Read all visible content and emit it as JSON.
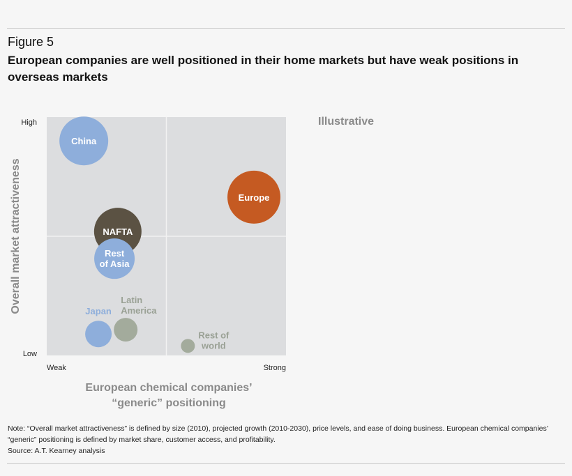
{
  "figure_label": "Figure 5",
  "title": "European companies are well positioned in their home markets but have weak positions in overseas markets",
  "annotation": "Illustrative",
  "note": "Note: “Overall market attractiveness” is defined by size (2010), projected growth (2010-2030), price levels, and ease of doing business. European chemical companies’ “generic” positioning is defined by market share, customer access, and profitability.",
  "source": "Source: A.T. Kearney analysis",
  "chart_data": {
    "type": "scatter",
    "subtype": "bubble",
    "xlabel": "European chemical companies’ “generic” positioning",
    "ylabel": "Overall market attractiveness",
    "x_ticks": [
      "Weak",
      "Strong"
    ],
    "y_ticks": [
      "Low",
      "High"
    ],
    "xlim": [
      0,
      100
    ],
    "ylim": [
      0,
      100
    ],
    "quadrant_lines": true,
    "colors": {
      "plot_bg": "#dcdddf",
      "blue": "#8eaedb",
      "orange": "#c55a22",
      "brown": "#5b5243",
      "green": "#a3ab9c",
      "label_gray": "#9aa195",
      "axis_label": "#8a8a8a"
    },
    "points": [
      {
        "name": "China",
        "x": 15.5,
        "y": 90,
        "size": 35,
        "color": "#8eaedb",
        "label_color": "#ffffff",
        "label_pos": "inside"
      },
      {
        "name": "Europe",
        "x": 86.6,
        "y": 66.4,
        "size": 38,
        "color": "#c55a22",
        "label_color": "#ffffff",
        "label_pos": "inside"
      },
      {
        "name": "NAFTA",
        "x": 29.7,
        "y": 52,
        "size": 34,
        "color": "#5b5243",
        "label_color": "#ffffff",
        "label_pos": "inside"
      },
      {
        "name": "Rest of Asia",
        "x": 28.3,
        "y": 40.6,
        "size": 29,
        "color": "#8eaedb",
        "label_color": "#ffffff",
        "label_pos": "inside"
      },
      {
        "name": "Japan",
        "x": 21.6,
        "y": 9,
        "size": 19,
        "color": "#8eaedb",
        "label_color": "#8eaedb",
        "label_pos": "top"
      },
      {
        "name": "Latin America",
        "x": 33,
        "y": 10.8,
        "size": 17,
        "color": "#a3ab9c",
        "label_color": "#9aa195",
        "label_pos": "top-right"
      },
      {
        "name": "Rest of world",
        "x": 59,
        "y": 4,
        "size": 10,
        "color": "#a3ab9c",
        "label_color": "#9aa195",
        "label_pos": "right"
      }
    ]
  }
}
